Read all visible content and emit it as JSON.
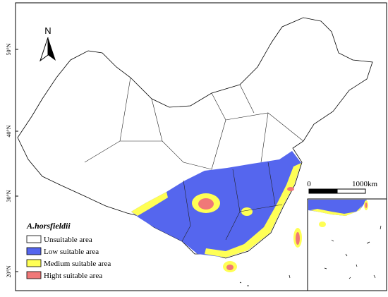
{
  "north_label": "N",
  "latitude_labels": [
    "50°N",
    "40°N",
    "30°N",
    "20°N"
  ],
  "scale_bar": {
    "start": "0",
    "end": "1000km"
  },
  "legend": {
    "title": "A.horsfieldii",
    "items": [
      {
        "label": "Unsuitable area",
        "color": "#ffffff"
      },
      {
        "label": "Low suitable area",
        "color": "#5566ee"
      },
      {
        "label": "Medium suitable area",
        "color": "#ffff55"
      },
      {
        "label": "Hight suitable area",
        "color": "#f07878"
      }
    ]
  }
}
